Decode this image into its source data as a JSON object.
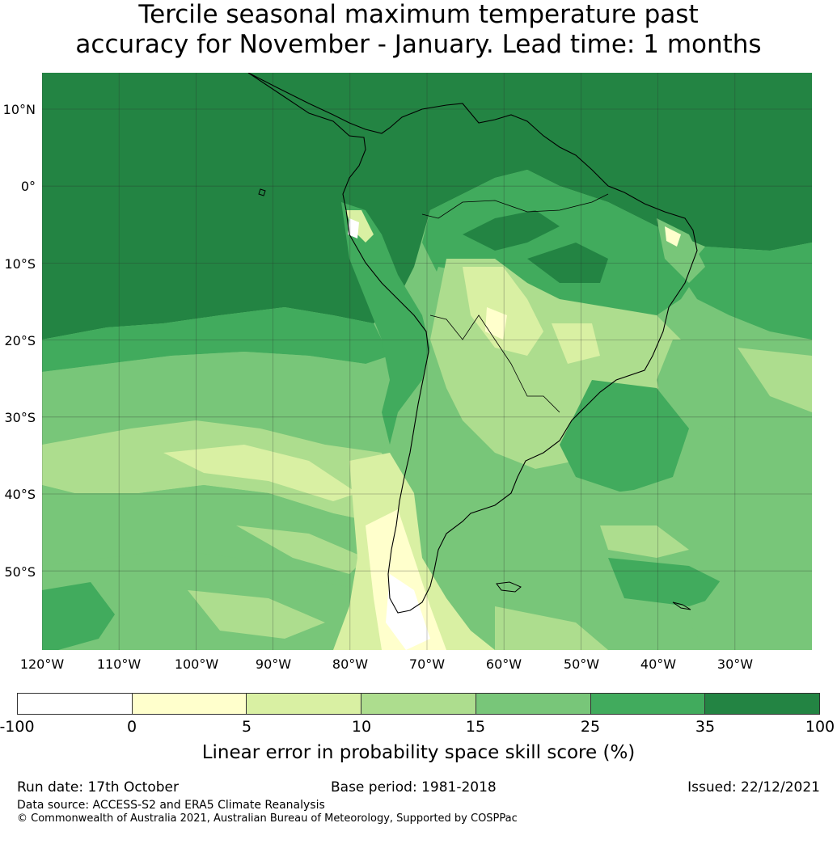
{
  "title": {
    "line1": "Tercile seasonal maximum temperature past",
    "line2": "accuracy for November - January. Lead time: 1 months"
  },
  "map": {
    "lat_labels": [
      "10°N",
      "0°",
      "10°S",
      "20°S",
      "30°S",
      "40°S",
      "50°S"
    ],
    "lon_labels": [
      "120°W",
      "110°W",
      "100°W",
      "90°W",
      "80°W",
      "70°W",
      "60°W",
      "50°W",
      "40°W",
      "30°W"
    ]
  },
  "colorbar": {
    "ticks": [
      "-100",
      "0",
      "5",
      "10",
      "15",
      "25",
      "35",
      "100"
    ],
    "colors": [
      "#ffffff",
      "#ffffcc",
      "#d9f0a3",
      "#addd8e",
      "#78c679",
      "#41ab5d",
      "#238443"
    ],
    "label": "Linear error in probability space skill score (%)"
  },
  "footer": {
    "run_date": "Run date: 17th October",
    "base_period": "Base period: 1981-2018",
    "issued": "Issued: 22/12/2021",
    "data_source": "Data source: ACCESS-S2 and ERA5 Climate Reanalysis",
    "copyright": "© Commonwealth of Australia 2021, Australian Bureau of Meteorology, Supported by COSPPac"
  }
}
